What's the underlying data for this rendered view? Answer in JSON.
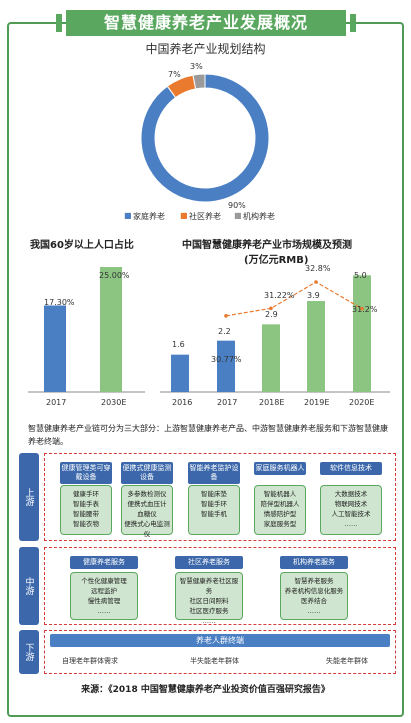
{
  "title": "智慧健康养老产业发展概况",
  "pie": {
    "title": "中国养老产业规划结构",
    "labels": [
      "90%",
      "7%",
      "3%"
    ],
    "legend": [
      "家庭养老",
      "社区养老",
      "机构养老"
    ],
    "colors": [
      "#4a7fc4",
      "#e97a2e",
      "#9a9a9a"
    ]
  },
  "chart_data": [
    {
      "type": "pie",
      "title": "中国养老产业规划结构",
      "categories": [
        "家庭养老",
        "社区养老",
        "机构养老"
      ],
      "values": [
        90,
        7,
        3
      ]
    },
    {
      "type": "bar",
      "title": "我国60岁以上人口占比",
      "categories": [
        "2017",
        "2030E"
      ],
      "values": [
        17.3,
        25.0
      ],
      "value_labels": [
        "17.30%",
        "25.00%"
      ],
      "colors": [
        "#4a7fc4",
        "#8cc482"
      ],
      "ylim": [
        0,
        30
      ]
    },
    {
      "type": "bar",
      "title": "中国智慧健康养老产业市场规模及预测",
      "subtitle": "(万亿元RMB)",
      "categories": [
        "2016",
        "2017",
        "2018E",
        "2019E",
        "2020E"
      ],
      "series": [
        {
          "values": [
            1.6,
            2.2,
            2.9,
            3.9,
            5.0
          ]
        },
        {
          "type": "line",
          "values": [
            null,
            30.77,
            31.22,
            32.8,
            31.2
          ]
        }
      ],
      "value_labels": [
        "1.6",
        "2.2",
        "2.9",
        "3.9",
        "5.0"
      ],
      "line_labels": [
        "",
        "30.77%",
        "31.22%",
        "32.8%",
        "31.2%"
      ],
      "colors": [
        "#4a7fc4",
        "#4a7fc4",
        "#8cc482",
        "#8cc482",
        "#8cc482"
      ],
      "line_color": "#e97a2e",
      "ylim": [
        0,
        6
      ],
      "y2lim": [
        28,
        34
      ]
    }
  ],
  "left_chart": {
    "title": "我国60岁以上人口占比",
    "labels": [
      "17.30%",
      "25.00%"
    ],
    "x": [
      "2017",
      "2030E"
    ]
  },
  "right_chart": {
    "title": "中国智慧健康养老产业市场规模及预测",
    "subtitle": "(万亿元RMB)",
    "labels": [
      "1.6",
      "2.2",
      "2.9",
      "3.9",
      "5.0"
    ],
    "line_labels": [
      "30.77%",
      "31.22%",
      "32.8%",
      "31.2%"
    ],
    "x": [
      "2016",
      "2017",
      "2018E",
      "2019E",
      "2020E"
    ]
  },
  "description": "智慧健康养老产业链可分为三大部分：上游智慧健康养老产品、中游智慧健康养老服务和下游智慧健康养老终端。",
  "rows": {
    "upstream": "上游",
    "midstream": "中游",
    "downstream": "下游"
  },
  "upstream": {
    "categories": [
      "健康管理类可穿戴设备",
      "便携式健康监测设备",
      "智能养老监护设备",
      "家庭服务机器人",
      "软件信息技术"
    ],
    "items": [
      [
        "健康手环",
        "智能手表",
        "智能腰带",
        "智能衣物",
        "……"
      ],
      [
        "多参数检测仪",
        "便携式血压计",
        "血糖仪",
        "便携式心电监测仪"
      ],
      [
        "智能床垫",
        "智能手环",
        "智能手机"
      ],
      [
        "智能机器人",
        "陪伴型机器人",
        "情感陪护型",
        "家庭服务型"
      ],
      [
        "大数据技术",
        "物联网技术",
        "人工智能技术",
        "……"
      ]
    ]
  },
  "midstream": {
    "categories": [
      "健康养老服务",
      "社区养老服务",
      "机构养老服务"
    ],
    "items": [
      [
        "个性化健康管理",
        "远程监护",
        "慢性病管理",
        "……"
      ],
      [
        "智慧健康养老社区服务",
        "社区日间照料",
        "社区医疗服务",
        "……"
      ],
      [
        "智慧养老服务",
        "养老机构信息化服务",
        "医养结合",
        "……"
      ]
    ]
  },
  "downstream": {
    "header": "养老人群终端",
    "items": [
      "自理老年群体需求",
      "半失能老年群体",
      "失能老年群体"
    ]
  },
  "footer": "来源：《2018 中国智慧健康养老产业投资价值百强研究报告》"
}
